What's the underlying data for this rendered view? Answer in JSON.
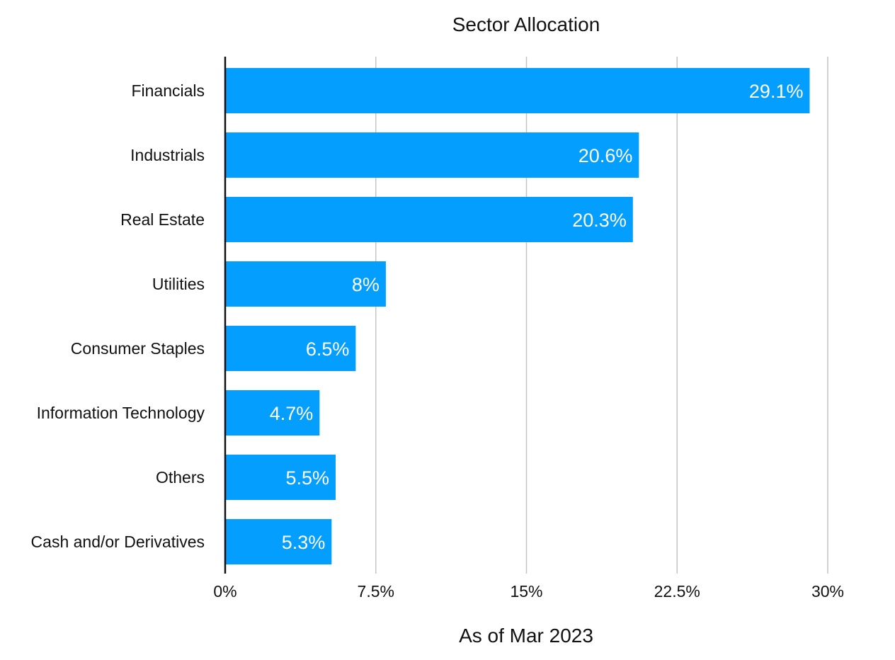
{
  "chart_data": {
    "type": "bar",
    "orientation": "horizontal",
    "title": "Sector Allocation",
    "xlabel": "As of Mar 2023",
    "ylabel": "",
    "categories": [
      "Financials",
      "Industrials",
      "Real Estate",
      "Utilities",
      "Consumer Staples",
      "Information Technology",
      "Others",
      "Cash and/or Derivatives"
    ],
    "values": [
      29.1,
      20.6,
      20.3,
      8,
      6.5,
      4.7,
      5.5,
      5.3
    ],
    "data_labels": [
      "29.1%",
      "20.6%",
      "20.3%",
      "8%",
      "6.5%",
      "4.7%",
      "5.5%",
      "5.3%"
    ],
    "xlim": [
      0,
      30
    ],
    "ticks": [
      0,
      7.5,
      15,
      22.5,
      30
    ],
    "tick_labels": [
      "0%",
      "7.5%",
      "15%",
      "22.5%",
      "30%"
    ],
    "grid": true,
    "legend": "none",
    "bar_color": "#049ffe",
    "grid_color": "#c4c4c4",
    "axis_color": "#111111"
  }
}
